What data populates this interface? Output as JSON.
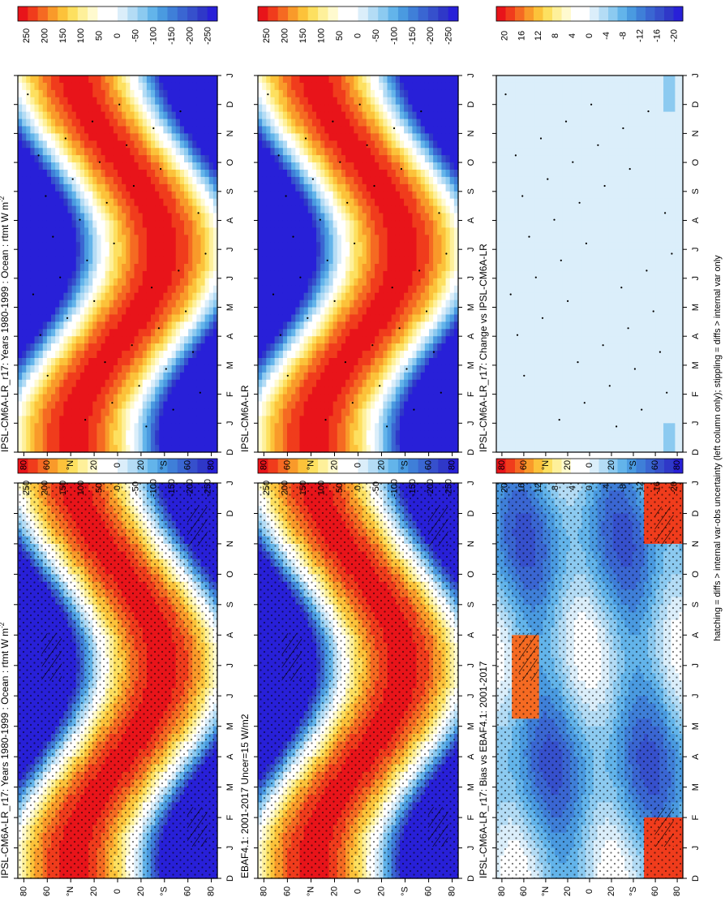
{
  "figure": {
    "footnote": "hatching = diffs > internal var-obs uncertainty (left column only); stippling = diffs > internal var only"
  },
  "months": [
    "D",
    "J",
    "F",
    "M",
    "A",
    "M",
    "J",
    "J",
    "A",
    "S",
    "O",
    "N",
    "D",
    "J"
  ],
  "lat_ticks": [
    "80",
    "60",
    "°N",
    "20",
    "0",
    "20",
    "°S",
    "60",
    "80"
  ],
  "colorbars": {
    "main": {
      "labels": [
        "250",
        "200",
        "150",
        "100",
        "50",
        "0",
        "-50",
        "-100",
        "-150",
        "-200",
        "-250"
      ],
      "colors": [
        "#e8141a",
        "#f03c1c",
        "#f56a22",
        "#f99a2a",
        "#fcc23a",
        "#fde060",
        "#fef09a",
        "#fffacf",
        "#ffffff",
        "#ffffff",
        "#dbeefa",
        "#b4dcf5",
        "#8ccaf0",
        "#63b4ea",
        "#4a9ae0",
        "#3f7fd8",
        "#3a66d2",
        "#3650cc",
        "#2f38c8",
        "#2820d8"
      ]
    },
    "diff": {
      "labels": [
        "20",
        "16",
        "12",
        "8",
        "4",
        "0",
        "-4",
        "-8",
        "-12",
        "-16",
        "-20"
      ],
      "colors": [
        "#e8141a",
        "#f03c1c",
        "#f56a22",
        "#f99a2a",
        "#fcc23a",
        "#fde060",
        "#fef09a",
        "#fffacf",
        "#ffffff",
        "#ffffff",
        "#dbeefa",
        "#b4dcf5",
        "#8ccaf0",
        "#63b4ea",
        "#4a9ae0",
        "#3f7fd8",
        "#3a66d2",
        "#3650cc",
        "#2f38c8",
        "#2820d8"
      ]
    }
  },
  "chart_data": [
    {
      "type": "heatmap",
      "panel": "top-left",
      "title": "IPSL-CM6A-LR_r17: Years 1980-1999 : Ocean : rtmt W m",
      "title_superscript": "-2",
      "x_categories": [
        "D",
        "J",
        "F",
        "M",
        "A",
        "M",
        "J",
        "J",
        "A",
        "S",
        "O",
        "N",
        "D",
        "J"
      ],
      "y_ticks": [
        "80",
        "60",
        "°N",
        "20",
        "0",
        "20",
        "°S",
        "60",
        "80"
      ],
      "colorbar_range": [
        -250,
        250
      ],
      "stippling": true,
      "hatching": true
    },
    {
      "type": "heatmap",
      "panel": "top-right",
      "title": "IPSL-CM6A-LR_r17: Years 1980-1999 : Ocean : rtmt W m",
      "title_superscript": "-2",
      "x_categories": [
        "D",
        "J",
        "F",
        "M",
        "A",
        "M",
        "J",
        "J",
        "A",
        "S",
        "O",
        "N",
        "D",
        "J"
      ],
      "y_ticks": [
        "80",
        "60",
        "°N",
        "20",
        "0",
        "20",
        "°S",
        "60",
        "80"
      ],
      "colorbar_range": [
        -250,
        250
      ],
      "stippling": "sparse",
      "hatching": false
    },
    {
      "type": "heatmap",
      "panel": "middle-left",
      "title": "EBAF4.1: 2001-2017 Uncer=15 W/m2",
      "title_superscript": "",
      "x_categories": [
        "D",
        "J",
        "F",
        "M",
        "A",
        "M",
        "J",
        "J",
        "A",
        "S",
        "O",
        "N",
        "D",
        "J"
      ],
      "y_ticks": [
        "80",
        "60",
        "°N",
        "20",
        "0",
        "20",
        "°S",
        "60",
        "80"
      ],
      "colorbar_range": [
        -250,
        250
      ],
      "stippling": true,
      "hatching": true
    },
    {
      "type": "heatmap",
      "panel": "middle-right",
      "title": "IPSL-CM6A-LR",
      "title_superscript": "",
      "x_categories": [
        "D",
        "J",
        "F",
        "M",
        "A",
        "M",
        "J",
        "J",
        "A",
        "S",
        "O",
        "N",
        "D",
        "J"
      ],
      "y_ticks": [
        "80",
        "60",
        "°N",
        "20",
        "0",
        "20",
        "°S",
        "60",
        "80"
      ],
      "colorbar_range": [
        -250,
        250
      ],
      "stippling": "sparse",
      "hatching": false
    },
    {
      "type": "heatmap",
      "panel": "bottom-left",
      "title": "IPSL-CM6A-LR_r17: Bias vs EBAF4.1: 2001-2017",
      "title_superscript": "",
      "x_categories": [
        "D",
        "J",
        "F",
        "M",
        "A",
        "M",
        "J",
        "J",
        "A",
        "S",
        "O",
        "N",
        "D",
        "J"
      ],
      "y_ticks": [
        "80",
        "60",
        "°N",
        "20",
        "0",
        "20",
        "°S",
        "60",
        "80"
      ],
      "colorbar_range": [
        -20,
        20
      ],
      "stippling": true,
      "hatching": true
    },
    {
      "type": "heatmap",
      "panel": "bottom-right",
      "title": "IPSL-CM6A-LR_r17: Change vs IPSL-CM6A-LR",
      "title_superscript": "",
      "x_categories": [
        "D",
        "J",
        "F",
        "M",
        "A",
        "M",
        "J",
        "J",
        "A",
        "S",
        "O",
        "N",
        "D",
        "J"
      ],
      "y_ticks": [
        "80",
        "60",
        "°N",
        "20",
        "0",
        "20",
        "°S",
        "60",
        "80"
      ],
      "colorbar_range": [
        -20,
        20
      ],
      "stippling": "sparse",
      "hatching": false
    }
  ]
}
